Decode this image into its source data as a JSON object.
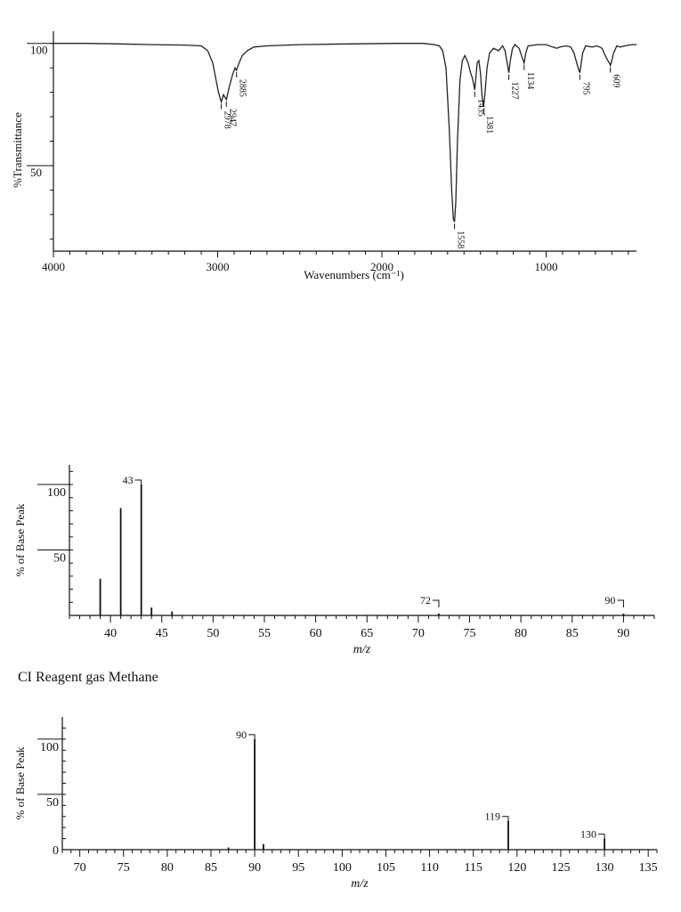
{
  "chart_data": [
    {
      "type": "line",
      "title": "",
      "xlabel": "Wavenumbers (cm⁻¹)",
      "ylabel": "%Transmittance",
      "xlim": [
        4000,
        450
      ],
      "ylim": [
        15,
        105
      ],
      "x_ticks": [
        "4000",
        "3000",
        "2000",
        "1000"
      ],
      "x_tick_values": [
        4000,
        3000,
        2000,
        1000
      ],
      "y_ticks": [
        "100",
        "50"
      ],
      "y_tick_values": [
        100,
        50
      ],
      "peak_labels": [
        "2978",
        "2947",
        "2885",
        "1558",
        "1435",
        "1381",
        "1227",
        "1134",
        "795",
        "609"
      ],
      "peak_values": [
        2978,
        2947,
        2885,
        1558,
        1435,
        1381,
        1227,
        1134,
        795,
        609
      ],
      "spectrum": [
        [
          4000,
          100
        ],
        [
          3800,
          100
        ],
        [
          3600,
          99.8
        ],
        [
          3400,
          99.5
        ],
        [
          3200,
          99.3
        ],
        [
          3100,
          99
        ],
        [
          3060,
          97
        ],
        [
          3030,
          92
        ],
        [
          3010,
          85
        ],
        [
          2995,
          80
        ],
        [
          2978,
          76
        ],
        [
          2965,
          79
        ],
        [
          2947,
          77
        ],
        [
          2930,
          82
        ],
        [
          2910,
          87
        ],
        [
          2895,
          90
        ],
        [
          2885,
          89
        ],
        [
          2870,
          92
        ],
        [
          2850,
          95
        ],
        [
          2820,
          97
        ],
        [
          2780,
          98.5
        ],
        [
          2700,
          99
        ],
        [
          2500,
          99.5
        ],
        [
          2200,
          99.8
        ],
        [
          1900,
          100
        ],
        [
          1750,
          100
        ],
        [
          1680,
          99.5
        ],
        [
          1650,
          99
        ],
        [
          1630,
          97
        ],
        [
          1610,
          90
        ],
        [
          1590,
          65
        ],
        [
          1575,
          40
        ],
        [
          1565,
          28
        ],
        [
          1558,
          27
        ],
        [
          1550,
          35
        ],
        [
          1540,
          60
        ],
        [
          1525,
          85
        ],
        [
          1510,
          93
        ],
        [
          1495,
          95
        ],
        [
          1475,
          92
        ],
        [
          1460,
          88
        ],
        [
          1450,
          86
        ],
        [
          1440,
          83
        ],
        [
          1435,
          81
        ],
        [
          1428,
          86
        ],
        [
          1420,
          92
        ],
        [
          1410,
          93
        ],
        [
          1400,
          88
        ],
        [
          1390,
          78
        ],
        [
          1381,
          74
        ],
        [
          1372,
          80
        ],
        [
          1360,
          90
        ],
        [
          1345,
          96
        ],
        [
          1320,
          98
        ],
        [
          1290,
          97
        ],
        [
          1265,
          99
        ],
        [
          1250,
          97
        ],
        [
          1235,
          91
        ],
        [
          1227,
          88
        ],
        [
          1218,
          93
        ],
        [
          1205,
          98
        ],
        [
          1190,
          99.5
        ],
        [
          1165,
          98
        ],
        [
          1145,
          94
        ],
        [
          1134,
          92
        ],
        [
          1124,
          96
        ],
        [
          1110,
          99
        ],
        [
          1050,
          99.5
        ],
        [
          1000,
          99.5
        ],
        [
          960,
          98.5
        ],
        [
          935,
          98
        ],
        [
          915,
          98.5
        ],
        [
          880,
          99
        ],
        [
          850,
          98.5
        ],
        [
          830,
          96
        ],
        [
          810,
          91
        ],
        [
          800,
          89
        ],
        [
          795,
          88
        ],
        [
          788,
          91
        ],
        [
          778,
          96
        ],
        [
          760,
          99
        ],
        [
          720,
          98.5
        ],
        [
          690,
          99
        ],
        [
          660,
          98
        ],
        [
          640,
          95
        ],
        [
          625,
          93
        ],
        [
          615,
          92
        ],
        [
          609,
          91
        ],
        [
          600,
          93
        ],
        [
          590,
          96
        ],
        [
          570,
          99
        ],
        [
          550,
          98.5
        ],
        [
          520,
          99
        ],
        [
          480,
          99.5
        ],
        [
          450,
          99.5
        ]
      ]
    },
    {
      "type": "bar",
      "title": "",
      "xlabel": "m/z",
      "ylabel": "% of Base Peak",
      "xlim": [
        36,
        93
      ],
      "ylim": [
        0,
        115
      ],
      "x_ticks": [
        "40",
        "45",
        "50",
        "55",
        "60",
        "65",
        "70",
        "75",
        "80",
        "85",
        "90"
      ],
      "x_tick_values": [
        40,
        45,
        50,
        55,
        60,
        65,
        70,
        75,
        80,
        85,
        90
      ],
      "y_ticks": [
        "100",
        "50"
      ],
      "y_tick_values": [
        100,
        50
      ],
      "x": [
        39,
        41,
        43,
        44,
        46,
        72,
        90
      ],
      "values": [
        28,
        82,
        100,
        6,
        3,
        0.5,
        0.5
      ],
      "peak_labels": [
        "43",
        "72",
        "90"
      ],
      "peak_label_x": [
        43,
        72,
        90
      ]
    },
    {
      "type": "bar",
      "title": "CI Reagent gas Methane",
      "xlabel": "m/z",
      "ylabel": "% of Base Peak",
      "xlim": [
        68,
        136
      ],
      "ylim": [
        0,
        120
      ],
      "x_ticks": [
        "70",
        "75",
        "80",
        "85",
        "90",
        "95",
        "100",
        "105",
        "110",
        "115",
        "120",
        "125",
        "130",
        "135"
      ],
      "x_tick_values": [
        70,
        75,
        80,
        85,
        90,
        95,
        100,
        105,
        110,
        115,
        120,
        125,
        130,
        135
      ],
      "y_ticks": [
        "0",
        "50",
        "100"
      ],
      "y_tick_values": [
        0,
        50,
        100
      ],
      "x": [
        87,
        90,
        91,
        119,
        130
      ],
      "values": [
        2,
        100,
        5,
        26,
        10
      ],
      "peak_labels": [
        "90",
        "119",
        "130"
      ],
      "peak_label_x": [
        90,
        119,
        130
      ]
    }
  ]
}
